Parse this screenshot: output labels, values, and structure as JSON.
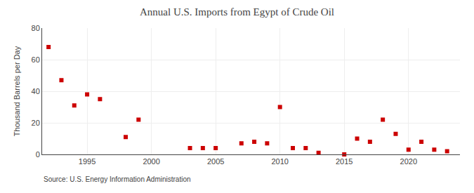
{
  "chart_data": {
    "type": "scatter",
    "title": "Annual U.S. Imports from Egypt of Crude Oil",
    "ylabel": "Thousand Barrels per Day",
    "annotations": [
      "Source: U.S. Energy Information Administration"
    ],
    "x": [
      1992,
      1993,
      1994,
      1995,
      1996,
      1998,
      1999,
      2003,
      2004,
      2005,
      2007,
      2008,
      2009,
      2010,
      2011,
      2012,
      2013,
      2015,
      2016,
      2017,
      2018,
      2019,
      2020,
      2021,
      2022,
      2023
    ],
    "values": [
      68,
      47,
      31,
      38,
      35,
      11,
      22,
      4,
      4,
      4,
      7,
      8,
      7,
      30,
      4,
      4,
      1,
      0,
      10,
      8,
      22,
      13,
      3,
      8,
      3,
      2
    ],
    "color": "#cc0000",
    "marker": "square",
    "xlim": [
      1991.5,
      2024
    ],
    "ylim": [
      0,
      80
    ],
    "xticks": [
      1995,
      2000,
      2005,
      2010,
      2015,
      2020
    ],
    "yticks": [
      0,
      20,
      40,
      60,
      80
    ],
    "grid": true
  }
}
